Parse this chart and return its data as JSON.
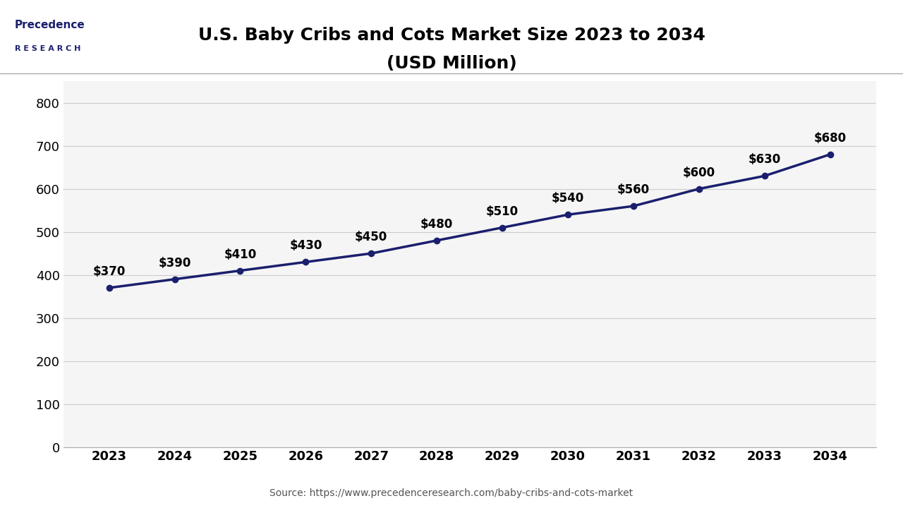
{
  "title_line1": "U.S. Baby Cribs and Cots Market Size 2023 to 2034",
  "title_line2": "(USD Million)",
  "years": [
    2023,
    2024,
    2025,
    2026,
    2027,
    2028,
    2029,
    2030,
    2031,
    2032,
    2033,
    2034
  ],
  "values": [
    370,
    390,
    410,
    430,
    450,
    480,
    510,
    540,
    560,
    600,
    630,
    680
  ],
  "labels": [
    "$370",
    "$390",
    "$410",
    "$430",
    "$450",
    "$480",
    "$510",
    "$540",
    "$560",
    "$600",
    "$630",
    "$680"
  ],
  "line_color": "#1a1f6e",
  "marker_color": "#1a1f6e",
  "bg_color": "#ffffff",
  "plot_bg_color": "#f5f5f5",
  "grid_color": "#cccccc",
  "title_color": "#000000",
  "tick_color": "#000000",
  "label_color": "#000000",
  "ylim": [
    0,
    850
  ],
  "yticks": [
    0,
    100,
    200,
    300,
    400,
    500,
    600,
    700,
    800
  ],
  "source_text": "Source: https://www.precedenceresearch.com/baby-cribs-and-cots-market",
  "title_fontsize": 18,
  "tick_fontsize": 13,
  "label_fontsize": 12,
  "source_fontsize": 10,
  "line_width": 2.5,
  "marker_size": 6,
  "logo_text1": "Precedence",
  "logo_text2": "R E S E A R C H",
  "logo_color": "#1a1f6e",
  "separator_color": "#aaaaaa"
}
